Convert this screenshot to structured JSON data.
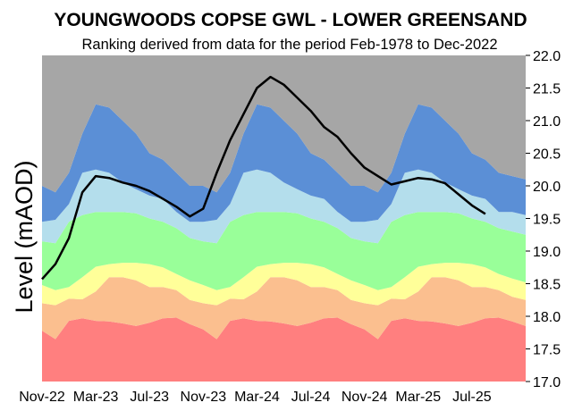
{
  "chart_data": {
    "type": "area",
    "title": "YOUNGWOODS COPSE GWL - LOWER GREENSAND",
    "subtitle": "Ranking derived from data for the period Feb-1978 to Dec-2022",
    "xlabel": "",
    "ylabel": "Level (mAOD)",
    "ylim": [
      17.0,
      22.0
    ],
    "yticks": [
      "17.0",
      "17.5",
      "18.0",
      "18.5",
      "19.0",
      "19.5",
      "20.0",
      "20.5",
      "21.0",
      "21.5",
      "22.0"
    ],
    "xticks": [
      "Nov-22",
      "Mar-23",
      "Jul-23",
      "Nov-23",
      "Mar-24",
      "Jul-24",
      "Nov-24",
      "Mar-25",
      "Jul-25"
    ],
    "x": [
      0,
      1,
      2,
      3,
      4,
      5,
      6,
      7,
      8,
      9,
      10,
      11,
      12,
      13,
      14,
      15,
      16,
      17,
      18,
      19,
      20,
      21,
      22,
      23,
      24,
      25,
      26,
      27,
      28,
      29,
      30,
      31,
      32,
      33,
      34,
      35,
      36
    ],
    "legend": false,
    "bands": [
      {
        "color": "#ff7f7f",
        "upper": [
          17.78,
          17.65,
          17.93,
          17.97,
          17.93,
          17.92,
          17.89,
          17.85,
          17.9,
          17.97,
          17.98,
          17.88,
          17.8,
          17.65,
          17.93,
          17.97,
          17.93,
          17.92,
          17.89,
          17.85,
          17.9,
          17.97,
          17.98,
          17.88,
          17.8,
          17.65,
          17.93,
          17.97,
          17.93,
          17.92,
          17.89,
          17.85,
          17.9,
          17.97,
          17.98,
          17.92,
          17.85
        ]
      },
      {
        "color": "#fbbf8f",
        "upper": [
          18.2,
          18.17,
          18.27,
          18.26,
          18.38,
          18.6,
          18.6,
          18.55,
          18.45,
          18.45,
          18.4,
          18.25,
          18.2,
          18.17,
          18.27,
          18.26,
          18.38,
          18.6,
          18.6,
          18.55,
          18.45,
          18.45,
          18.4,
          18.25,
          18.2,
          18.17,
          18.27,
          18.26,
          18.38,
          18.6,
          18.6,
          18.55,
          18.45,
          18.45,
          18.4,
          18.3,
          18.25
        ]
      },
      {
        "color": "#ffff99",
        "upper": [
          18.48,
          18.4,
          18.45,
          18.6,
          18.76,
          18.8,
          18.82,
          18.82,
          18.8,
          18.75,
          18.65,
          18.55,
          18.48,
          18.4,
          18.45,
          18.6,
          18.76,
          18.8,
          18.82,
          18.82,
          18.8,
          18.75,
          18.65,
          18.55,
          18.48,
          18.4,
          18.45,
          18.6,
          18.76,
          18.8,
          18.82,
          18.82,
          18.8,
          18.75,
          18.65,
          18.58,
          18.52
        ]
      },
      {
        "color": "#99ff99",
        "upper": [
          19.15,
          19.12,
          19.45,
          19.55,
          19.6,
          19.6,
          19.6,
          19.58,
          19.5,
          19.45,
          19.35,
          19.2,
          19.15,
          19.12,
          19.45,
          19.55,
          19.6,
          19.6,
          19.6,
          19.58,
          19.5,
          19.45,
          19.35,
          19.2,
          19.15,
          19.12,
          19.45,
          19.55,
          19.6,
          19.6,
          19.6,
          19.58,
          19.5,
          19.45,
          19.35,
          19.3,
          19.25
        ]
      },
      {
        "color": "#b4deec",
        "upper": [
          19.45,
          19.48,
          19.72,
          20.2,
          20.25,
          20.2,
          20.05,
          19.95,
          19.85,
          19.8,
          19.6,
          19.45,
          19.45,
          19.48,
          19.72,
          20.2,
          20.25,
          20.2,
          20.05,
          19.95,
          19.85,
          19.8,
          19.6,
          19.45,
          19.45,
          19.48,
          19.72,
          20.2,
          20.25,
          20.2,
          20.05,
          19.95,
          19.85,
          19.8,
          19.6,
          19.6,
          19.55
        ]
      },
      {
        "color": "#5b8fd6",
        "upper": [
          20.0,
          19.9,
          20.2,
          20.8,
          21.25,
          21.2,
          21.0,
          20.8,
          20.5,
          20.4,
          20.2,
          20.0,
          20.0,
          19.9,
          20.2,
          20.8,
          21.25,
          21.2,
          21.0,
          20.8,
          20.5,
          20.4,
          20.2,
          20.0,
          20.0,
          19.9,
          20.2,
          20.8,
          21.25,
          21.2,
          21.0,
          20.8,
          20.5,
          20.4,
          20.2,
          20.15,
          20.1
        ]
      },
      {
        "color": "#a6a6a6",
        "upper": [
          22.0,
          22.0,
          22.0,
          22.0,
          22.0,
          22.0,
          22.0,
          22.0,
          22.0,
          22.0,
          22.0,
          22.0,
          22.0,
          22.0,
          22.0,
          22.0,
          22.0,
          22.0,
          22.0,
          22.0,
          22.0,
          22.0,
          22.0,
          22.0,
          22.0,
          22.0,
          22.0,
          22.0,
          22.0,
          22.0,
          22.0,
          22.0,
          22.0,
          22.0,
          22.0,
          22.0,
          22.0
        ]
      }
    ],
    "series": [
      {
        "color": "#000000",
        "values": [
          18.57,
          18.8,
          19.2,
          19.9,
          20.15,
          20.12,
          20.05,
          20.0,
          19.92,
          19.8,
          19.68,
          19.53,
          19.65,
          20.2,
          20.7,
          21.1,
          21.5,
          21.67,
          21.55,
          21.35,
          21.15,
          20.9,
          20.75,
          20.5,
          20.28,
          20.15,
          20.02,
          20.07,
          20.12,
          20.1,
          20.04,
          19.87,
          19.7,
          19.57,
          null,
          null,
          null
        ]
      }
    ]
  }
}
